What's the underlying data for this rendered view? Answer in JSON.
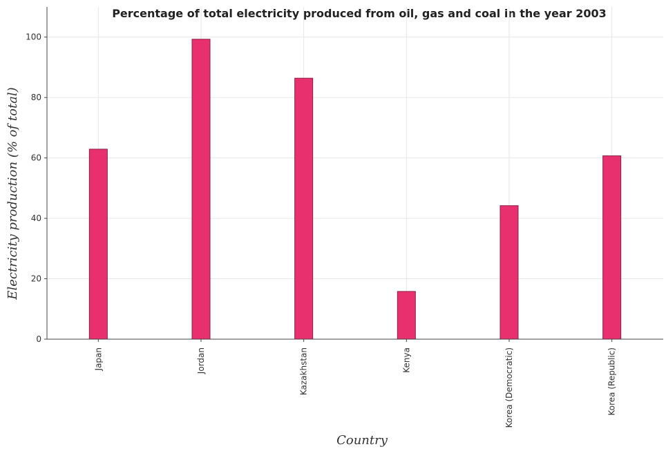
{
  "chart_data": {
    "type": "bar",
    "title": "Percentage of total electricity produced from oil, gas and coal in the year 2003",
    "xlabel": "Country",
    "ylabel": "Electricity production (% of total)",
    "categories": [
      "Japan",
      "Jordan",
      "Kazakhstan",
      "Kenya",
      "Korea (Democratic)",
      "Korea (Republic)"
    ],
    "values": [
      62.9,
      99.3,
      86.4,
      15.8,
      44.2,
      60.7
    ],
    "ylim": [
      0,
      110
    ],
    "yticks": [
      0,
      20,
      40,
      60,
      80,
      100
    ],
    "grid": true,
    "bar_color": "#e8306e"
  }
}
